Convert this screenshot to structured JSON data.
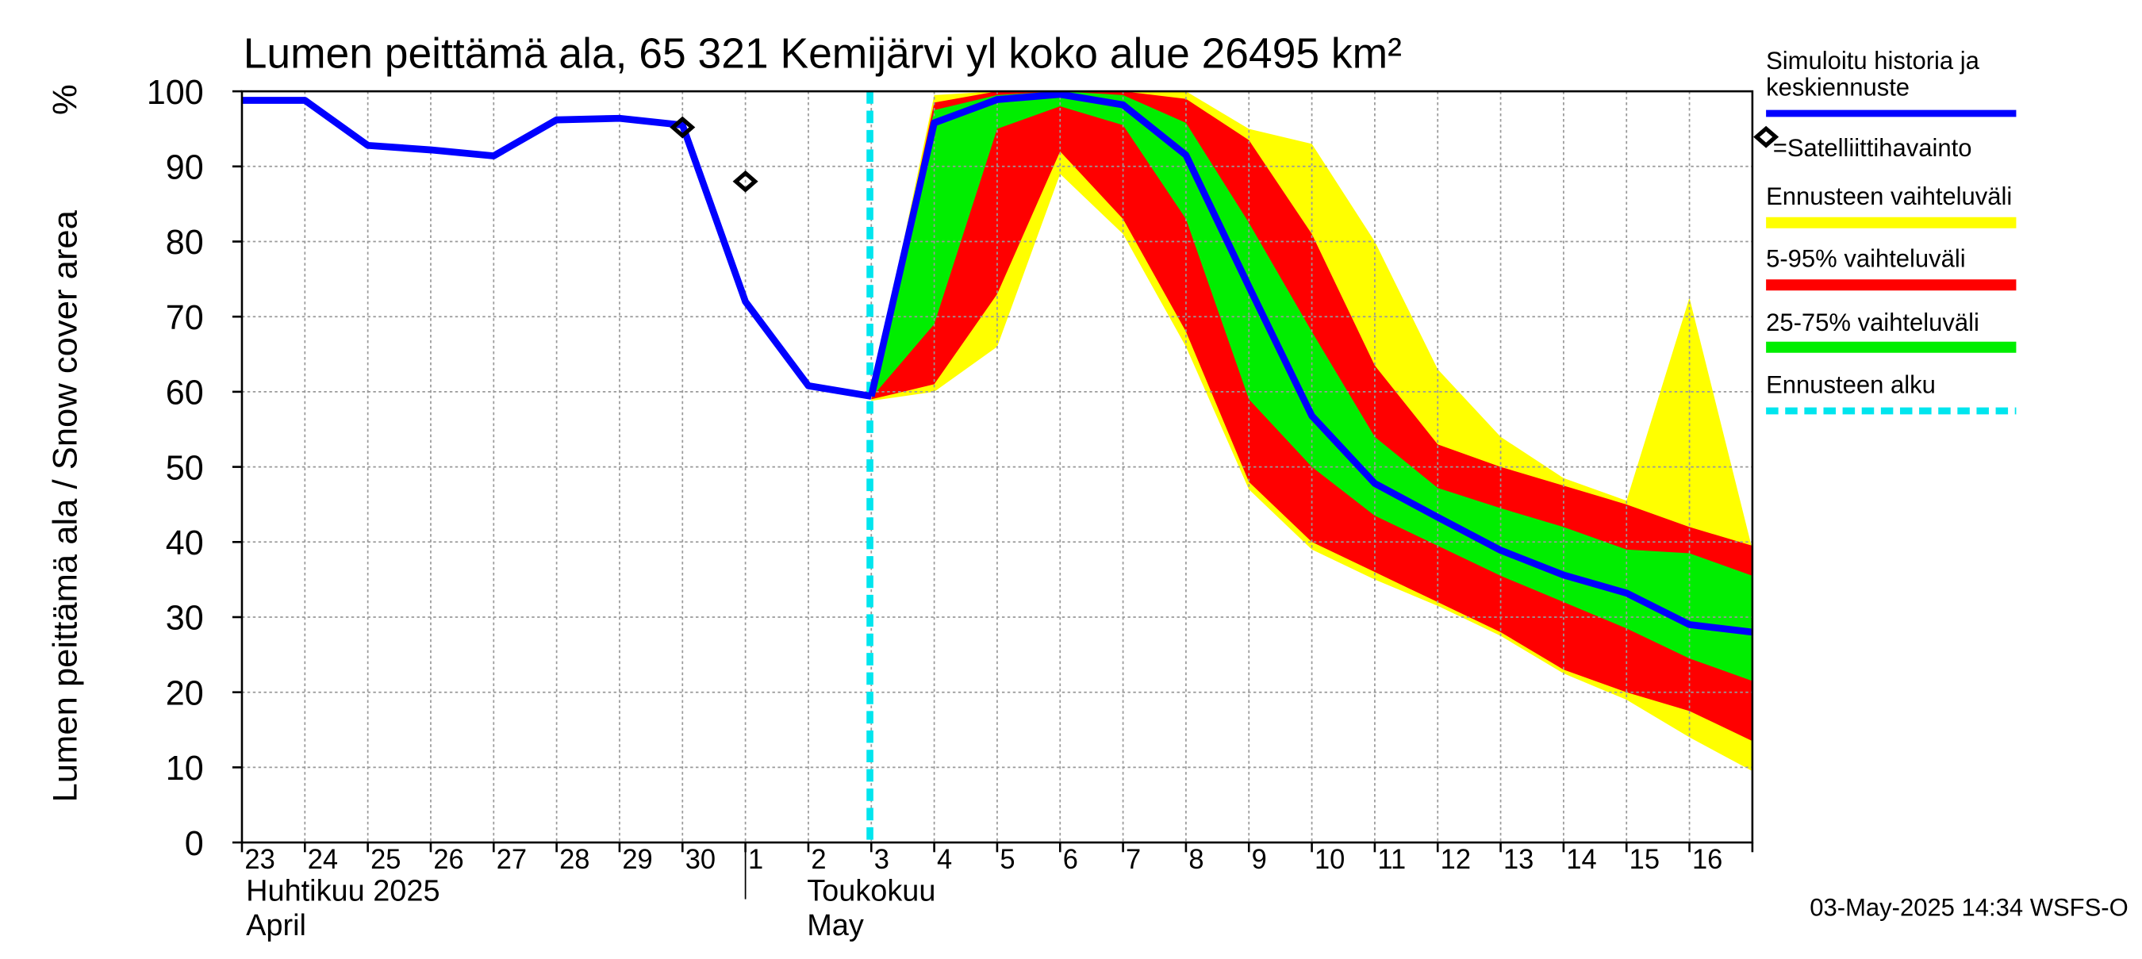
{
  "chart_data": {
    "type": "area",
    "title": "Lumen peittämä ala, 65 321 Kemijärvi yl koko alue 26495 km²",
    "ylabel": "Lumen peittämä ala / Snow cover area",
    "yunit": "%",
    "ylim": [
      0,
      100
    ],
    "yticks": [
      "0",
      "10",
      "20",
      "30",
      "40",
      "50",
      "60",
      "70",
      "80",
      "90",
      "100"
    ],
    "x_day_labels": [
      "23",
      "24",
      "25",
      "26",
      "27",
      "28",
      "29",
      "30",
      "1",
      "2",
      "3",
      "4",
      "5",
      "6",
      "7",
      "8",
      "9",
      "10",
      "11",
      "12",
      "13",
      "14",
      "15",
      "16"
    ],
    "month_labels": [
      {
        "line1": "Huhtikuu  2025",
        "line2": "April"
      },
      {
        "line1": "Toukokuu",
        "line2": "May"
      }
    ],
    "grid": true,
    "forecast_start": "3",
    "history": {
      "x": [
        "23",
        "24",
        "25",
        "26",
        "27",
        "28",
        "29",
        "30",
        "1",
        "2",
        "3"
      ],
      "y": [
        98.8,
        98.8,
        92.8,
        92.2,
        91.4,
        96.2,
        96.4,
        95.5,
        72,
        60.8,
        59.4
      ]
    },
    "forecast_median": {
      "x": [
        "3",
        "4",
        "5",
        "6",
        "7",
        "8",
        "9",
        "10",
        "11",
        "12",
        "13",
        "14",
        "15",
        "16",
        "17"
      ],
      "y": [
        59.4,
        95.8,
        98.9,
        99.6,
        98.2,
        91.5,
        74,
        56.8,
        47.8,
        43.3,
        38.9,
        35.6,
        33.2,
        29,
        28
      ]
    },
    "range_full": {
      "x": [
        "3",
        "4",
        "5",
        "6",
        "7",
        "8",
        "9",
        "10",
        "11",
        "12",
        "13",
        "14",
        "15",
        "16",
        "17"
      ],
      "low": [
        58.8,
        60,
        66,
        89,
        81,
        66,
        47,
        39,
        35,
        31.5,
        27.5,
        22.5,
        19,
        14,
        9.5
      ],
      "high": [
        59.6,
        99.5,
        100,
        100,
        100,
        100,
        95,
        93,
        80,
        63,
        54,
        48.5,
        45.5,
        72.5,
        39
      ]
    },
    "range_5_95": {
      "x": [
        "3",
        "4",
        "5",
        "6",
        "7",
        "8",
        "9",
        "10",
        "11",
        "12",
        "13",
        "14",
        "15",
        "16",
        "17"
      ],
      "low": [
        59,
        61,
        73,
        92,
        83,
        68,
        48,
        40,
        36,
        32,
        28,
        23,
        20,
        17.5,
        13.5
      ],
      "high": [
        59.5,
        98.5,
        100,
        100,
        100,
        99,
        93.5,
        81,
        63.5,
        53,
        50,
        47.5,
        45,
        42,
        39.5
      ]
    },
    "range_25_75": {
      "x": [
        "3",
        "4",
        "5",
        "6",
        "7",
        "8",
        "9",
        "10",
        "11",
        "12",
        "13",
        "14",
        "15",
        "16",
        "17"
      ],
      "low": [
        59.2,
        69,
        95,
        98,
        95.5,
        83,
        59,
        50,
        43.5,
        39.5,
        35.5,
        32,
        28.5,
        24.5,
        21.5
      ],
      "high": [
        59.4,
        97.5,
        99.5,
        100,
        99.5,
        95.8,
        82.5,
        68,
        54,
        47.2,
        44.5,
        42,
        39,
        38.5,
        35.5
      ]
    },
    "satellite": {
      "x": [
        "30",
        "1"
      ],
      "y": [
        95.2,
        88
      ]
    },
    "legend": {
      "history": "Simuloitu historia ja keskiennuste",
      "satellite": "=Satelliittihavainto",
      "range_full": "Ennusteen vaihteluväli",
      "range_5_95": "5-95% vaihteluväli",
      "range_25_75": "25-75% vaihteluväli",
      "forecast_start": "Ennusteen alku"
    },
    "colors": {
      "history": "#0000ff",
      "range_full": "#ffff00",
      "range_5_95": "#ff0000",
      "range_25_75": "#00ee00",
      "forecast_start": "#00e5ee",
      "grid": "#999999"
    },
    "footer": "03-May-2025 14:34 WSFS-O"
  }
}
